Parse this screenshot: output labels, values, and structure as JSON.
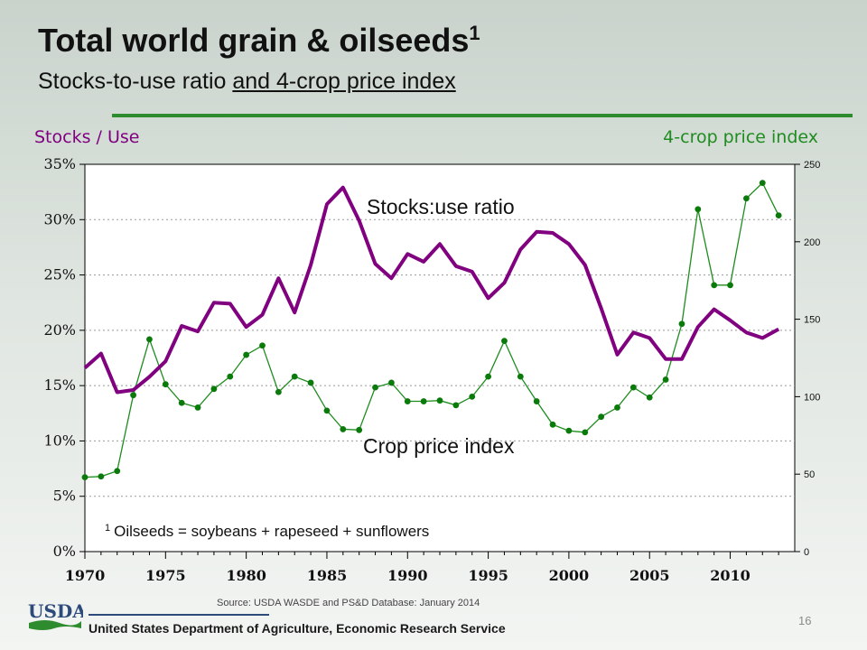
{
  "title": "Total world grain & oilseeds",
  "title_footnote_mark": "1",
  "subtitle_plain": "Stocks-to-use ratio ",
  "subtitle_underlined": "and 4-crop price index",
  "source": "Source:  USDA WASDE and PS&D Database:  January 2014",
  "page_number": "16",
  "agency": "United States Department of Agriculture, Economic Research Service",
  "logo_text": "USDA",
  "colors": {
    "stocks_line": "#800080",
    "price_line": "#1e8c1e",
    "price_marker": "#0a7a0a",
    "rule": "#2e8b2e"
  },
  "chart_data": {
    "type": "line",
    "left_axis_title": "Stocks / Use",
    "right_axis_title": "4-crop price index",
    "x": [
      1970,
      1971,
      1972,
      1973,
      1974,
      1975,
      1976,
      1977,
      1978,
      1979,
      1980,
      1981,
      1982,
      1983,
      1984,
      1985,
      1986,
      1987,
      1988,
      1989,
      1990,
      1991,
      1992,
      1993,
      1994,
      1995,
      1996,
      1997,
      1998,
      1999,
      2000,
      2001,
      2002,
      2003,
      2004,
      2005,
      2006,
      2007,
      2008,
      2009,
      2010,
      2011,
      2012,
      2013
    ],
    "xlim": [
      1970,
      2014
    ],
    "x_ticks": [
      1970,
      1975,
      1980,
      1985,
      1990,
      1995,
      2000,
      2005,
      2010
    ],
    "left_ylim": [
      0,
      35
    ],
    "left_ticks": [
      0,
      5,
      10,
      15,
      20,
      25,
      30,
      35
    ],
    "left_tick_labels": [
      "0%",
      "5%",
      "10%",
      "15%",
      "20%",
      "25%",
      "30%",
      "35%"
    ],
    "right_ylim": [
      0,
      250
    ],
    "right_ticks": [
      0,
      50,
      100,
      150,
      200,
      250
    ],
    "right_tick_labels": [
      "0",
      "50",
      "100",
      "150",
      "200",
      "250"
    ],
    "grid": true,
    "series": [
      {
        "name": "Stocks:use ratio",
        "axis": "left",
        "values": [
          16.6,
          17.9,
          14.4,
          14.6,
          15.8,
          17.2,
          20.4,
          19.9,
          22.5,
          22.4,
          20.3,
          21.4,
          24.7,
          21.6,
          25.9,
          31.4,
          32.9,
          29.9,
          26.0,
          24.7,
          26.9,
          26.2,
          27.8,
          25.8,
          25.3,
          22.9,
          24.3,
          27.3,
          28.9,
          28.8,
          27.8,
          25.9,
          22.0,
          17.8,
          19.8,
          19.3,
          17.4,
          17.4,
          20.3,
          21.9,
          20.9,
          19.8,
          19.3,
          20.1
        ]
      },
      {
        "name": "Crop price index",
        "axis": "right",
        "values": [
          48,
          48.5,
          52,
          101,
          137,
          108,
          96,
          93,
          105,
          113,
          127,
          133,
          103,
          113,
          109,
          91,
          79,
          78.5,
          106,
          109,
          97,
          97,
          97.5,
          94.5,
          100,
          113,
          136,
          113,
          97,
          82,
          78,
          77,
          87,
          93,
          106,
          99.5,
          111,
          147,
          221,
          172,
          172,
          228,
          238,
          217
        ]
      }
    ],
    "annotations": {
      "stocks_label": "Stocks:use ratio",
      "price_label": "Crop price index",
      "footnote_mark": "1",
      "footnote_text": "Oilseeds = soybeans + rapeseed + sunflowers"
    }
  }
}
